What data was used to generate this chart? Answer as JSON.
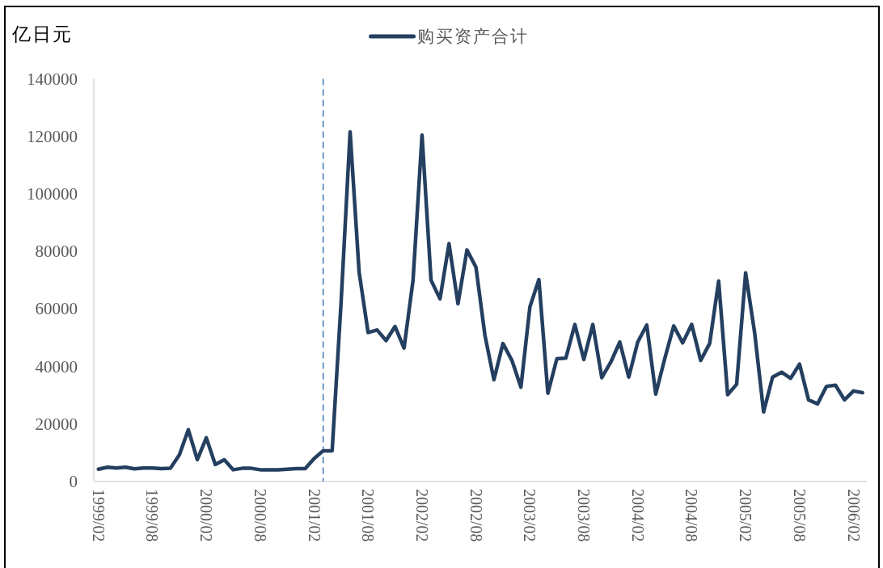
{
  "chart_data": {
    "type": "line",
    "ylabel": "亿日元",
    "x": [
      "1999-02",
      "1999-03",
      "1999-04",
      "1999-05",
      "1999-06",
      "1999-07",
      "1999-08",
      "1999-09",
      "1999-10",
      "1999-11",
      "1999-12",
      "2000-01",
      "2000-02",
      "2000-03",
      "2000-04",
      "2000-05",
      "2000-06",
      "2000-07",
      "2000-08",
      "2000-09",
      "2000-10",
      "2000-11",
      "2000-12",
      "2001-01",
      "2001-02",
      "2001-03",
      "2001-04",
      "2001-05",
      "2001-06",
      "2001-07",
      "2001-08",
      "2001-09",
      "2001-10",
      "2001-11",
      "2001-12",
      "2002-01",
      "2002-02",
      "2002-03",
      "2002-04",
      "2002-05",
      "2002-06",
      "2002-07",
      "2002-08",
      "2002-09",
      "2002-10",
      "2002-11",
      "2002-12",
      "2003-01",
      "2003-02",
      "2003-03",
      "2003-04",
      "2003-05",
      "2003-06",
      "2003-07",
      "2003-08",
      "2003-09",
      "2003-10",
      "2003-11",
      "2003-12",
      "2004-01",
      "2004-02",
      "2004-03",
      "2004-04",
      "2004-05",
      "2004-06",
      "2004-07",
      "2004-08",
      "2004-09",
      "2004-10",
      "2004-11",
      "2004-12",
      "2005-01",
      "2005-02",
      "2005-03",
      "2005-04",
      "2005-05",
      "2005-06",
      "2005-07",
      "2005-08",
      "2005-09",
      "2005-10",
      "2005-11",
      "2005-12",
      "2006-01",
      "2006-02",
      "2006-03"
    ],
    "series": [
      {
        "name": "购买资产合计",
        "color": "#243f60",
        "values": [
          4300,
          5000,
          4700,
          5000,
          4400,
          4700,
          4700,
          4500,
          4600,
          9300,
          18000,
          7600,
          15200,
          5900,
          7600,
          4100,
          4600,
          4600,
          4100,
          4100,
          4100,
          4300,
          4500,
          4500,
          8000,
          10700,
          10700,
          62600,
          121500,
          72800,
          51800,
          52700,
          49000,
          53900,
          46400,
          70000,
          120400,
          70000,
          63500,
          82700,
          61800,
          80500,
          74500,
          50800,
          35400,
          48000,
          42100,
          32800,
          60700,
          70200,
          30700,
          42700,
          42900,
          54600,
          42400,
          54600,
          36100,
          41500,
          48500,
          36300,
          48500,
          54400,
          30400,
          42700,
          54100,
          48200,
          54600,
          42100,
          48000,
          69700,
          30200,
          33800,
          72500,
          51800,
          24200,
          36300,
          38000,
          35900,
          40800,
          28400,
          27000,
          33100,
          33500,
          28400,
          31500,
          30900
        ]
      }
    ],
    "xlim": [
      "1999-01-16",
      "2006-03-16"
    ],
    "xticks": [
      {
        "value": "1999-02",
        "label": "1999/02"
      },
      {
        "value": "1999-08",
        "label": "1999/08"
      },
      {
        "value": "2000-02",
        "label": "2000/02"
      },
      {
        "value": "2000-08",
        "label": "2000/08"
      },
      {
        "value": "2001-02",
        "label": "2001/02"
      },
      {
        "value": "2001-08",
        "label": "2001/08"
      },
      {
        "value": "2002-02",
        "label": "2002/02"
      },
      {
        "value": "2002-08",
        "label": "2002/08"
      },
      {
        "value": "2003-02",
        "label": "2003/02"
      },
      {
        "value": "2003-08",
        "label": "2003/08"
      },
      {
        "value": "2004-02",
        "label": "2004/02"
      },
      {
        "value": "2004-08",
        "label": "2004/08"
      },
      {
        "value": "2005-02",
        "label": "2005/02"
      },
      {
        "value": "2005-08",
        "label": "2005/08"
      },
      {
        "value": "2006-02",
        "label": "2006/02"
      }
    ],
    "ylim": [
      0,
      140000
    ],
    "yticks": [
      0,
      20000,
      40000,
      60000,
      80000,
      100000,
      120000,
      140000
    ],
    "ref_lines": [
      {
        "axis": "x",
        "value": "2001-03",
        "color": "#4a7ebb",
        "line_style": "dashed"
      }
    ],
    "legend": "top"
  }
}
